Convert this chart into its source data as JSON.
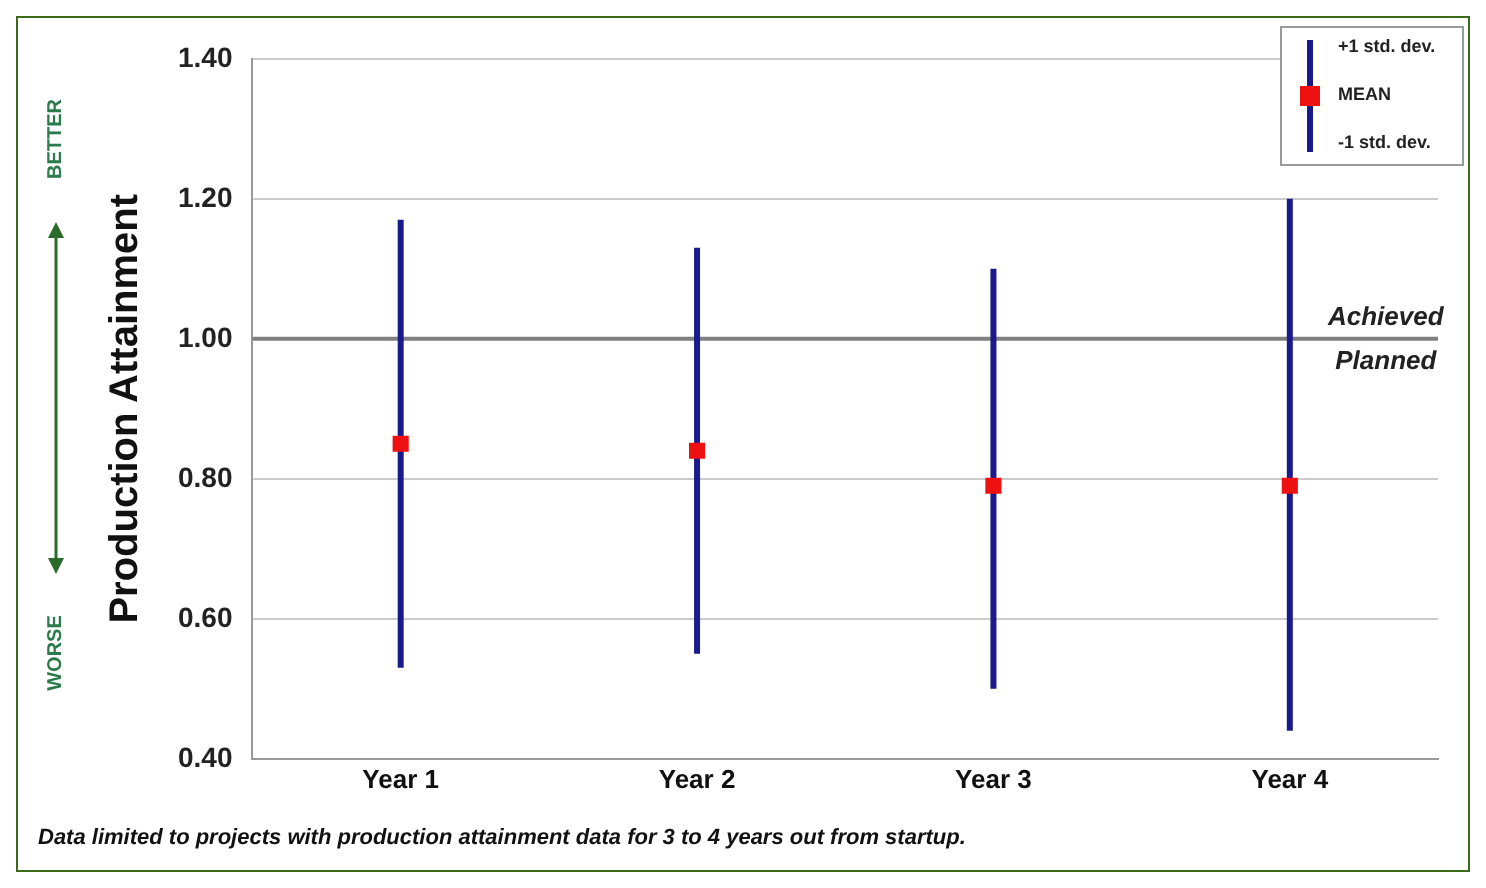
{
  "chart_data": {
    "type": "scatter",
    "ylabel": "Production Attainment",
    "categories": [
      "Year 1",
      "Year 2",
      "Year 3",
      "Year 4"
    ],
    "series": [
      {
        "name": "MEAN",
        "color": "#ee1111",
        "values": [
          0.85,
          0.84,
          0.79,
          0.79
        ],
        "errors": [
          [
            0.53,
            1.17
          ],
          [
            0.55,
            1.13
          ],
          [
            0.5,
            1.1
          ],
          [
            0.44,
            1.2
          ]
        ]
      }
    ],
    "ylim": [
      0.4,
      1.4
    ],
    "yticks": [
      {
        "value": 0.4,
        "label": "0.40"
      },
      {
        "value": 0.6,
        "label": "0.60"
      },
      {
        "value": 0.8,
        "label": "0.80"
      },
      {
        "value": 1.0,
        "label": "1.00"
      },
      {
        "value": 1.2,
        "label": "1.20"
      },
      {
        "value": 1.4,
        "label": "1.40"
      }
    ],
    "grid": "y",
    "legend": "top right",
    "marker": "square",
    "ref_lines": [
      {
        "axis": "y",
        "value": 1.0,
        "color": "#808080"
      }
    ],
    "annotations": [
      "+1 std. dev.",
      "-1 std. dev.",
      "BETTER",
      "WORSE",
      {
        "text": "Achieved",
        "x": "Year 4",
        "y": 1.0
      },
      {
        "text": "Planned",
        "x": "Year 4",
        "y": 1.0
      },
      "Data limited to projects with production attainment data for 3 to 4 years out from startup."
    ]
  }
}
